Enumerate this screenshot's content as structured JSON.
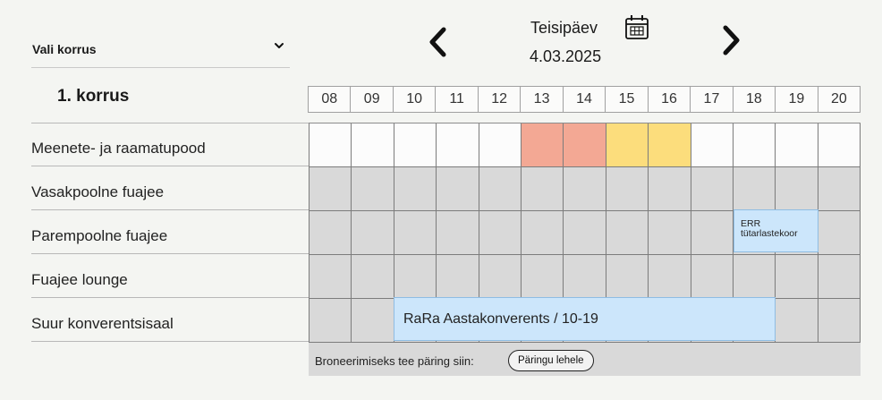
{
  "floor_select": {
    "label": "Vali korrus",
    "icon": "chevron-down-icon"
  },
  "floor_title": "1. korrus",
  "date": {
    "day": "Teisipäev",
    "value": "4.03.2025"
  },
  "hours": [
    "08",
    "09",
    "10",
    "11",
    "12",
    "13",
    "14",
    "15",
    "16",
    "17",
    "18",
    "19",
    "20"
  ],
  "rooms": [
    {
      "name": "Meenete- ja raamatupood",
      "slots": [
        "avail",
        "avail",
        "avail",
        "avail",
        "avail",
        "booked",
        "booked",
        "pending",
        "pending",
        "avail",
        "avail",
        "avail",
        "avail"
      ]
    },
    {
      "name": "Vasakpoolne fuajee",
      "slots": [
        "blocked",
        "blocked",
        "blocked",
        "blocked",
        "blocked",
        "blocked",
        "blocked",
        "blocked",
        "blocked",
        "blocked",
        "blocked",
        "blocked",
        "blocked"
      ]
    },
    {
      "name": "Parempoolne fuajee",
      "slots": [
        "blocked",
        "blocked",
        "blocked",
        "blocked",
        "blocked",
        "blocked",
        "blocked",
        "blocked",
        "blocked",
        "blocked",
        "blocked",
        "blocked",
        "blocked"
      ]
    },
    {
      "name": "Fuajee lounge",
      "slots": [
        "blocked",
        "blocked",
        "blocked",
        "blocked",
        "blocked",
        "blocked",
        "blocked",
        "blocked",
        "blocked",
        "blocked",
        "blocked",
        "blocked",
        "blocked"
      ]
    },
    {
      "name": "Suur konverentsisaal",
      "slots": [
        "blocked",
        "blocked",
        "blocked",
        "blocked",
        "blocked",
        "blocked",
        "blocked",
        "blocked",
        "blocked",
        "blocked",
        "blocked",
        "blocked",
        "blocked"
      ]
    }
  ],
  "events": {
    "err": {
      "line1": "ERR",
      "line2": "tütarlastekoor",
      "room": "Parempoolne fuajee",
      "start": "18",
      "end": "19"
    },
    "rara": {
      "title": "RaRa Aastakonverents / 10-19",
      "room": "Suur konverentsisaal",
      "start": "10",
      "end": "19"
    }
  },
  "footer": {
    "text": "Broneerimiseks tee päring siin:",
    "button": "Päringu lehele"
  },
  "colors": {
    "booked": "#f3a894",
    "pending": "#fcdd7c",
    "event": "#cce6fb",
    "blocked": "#d9d9d9",
    "available": "#fcfcfc"
  }
}
